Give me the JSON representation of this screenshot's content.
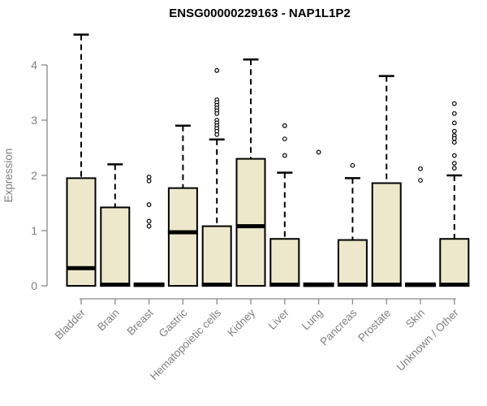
{
  "chart_data": {
    "type": "boxplot",
    "title": "ENSG00000229163 - NAP1L1P2",
    "ylabel": "Expression",
    "xlabel": "",
    "ylim": [
      0,
      4.6
    ],
    "yticks": [
      0,
      1,
      2,
      3,
      4
    ],
    "grid": false,
    "legend": false,
    "categories": [
      "Bladder",
      "Brain",
      "Breast",
      "Gastric",
      "Hematopoietic cells",
      "Kidney",
      "Liver",
      "Lung",
      "Pancreas",
      "Prostate",
      "Skin",
      "Unknown / Other"
    ],
    "series": [
      {
        "category": "Bladder",
        "q1": 0,
        "median": 0.32,
        "q3": 1.95,
        "whisker_low": 0,
        "whisker_high": 4.55,
        "outliers": []
      },
      {
        "category": "Brain",
        "q1": 0,
        "median": 0.02,
        "q3": 1.42,
        "whisker_low": 0,
        "whisker_high": 2.2,
        "outliers": []
      },
      {
        "category": "Breast",
        "q1": 0,
        "median": 0.02,
        "q3": 0,
        "whisker_low": 0,
        "whisker_high": 0,
        "outliers": [
          1.97,
          1.9,
          1.47,
          1.17,
          1.08
        ]
      },
      {
        "category": "Gastric",
        "q1": 0,
        "median": 0.97,
        "q3": 1.77,
        "whisker_low": 0,
        "whisker_high": 2.9,
        "outliers": []
      },
      {
        "category": "Hematopoietic cells",
        "q1": 0,
        "median": 0.02,
        "q3": 1.08,
        "whisker_low": 0,
        "whisker_high": 2.65,
        "outliers": [
          3.9,
          3.37,
          3.32,
          3.27,
          3.22,
          3.17,
          3.12,
          3.0,
          2.95,
          2.9,
          2.85,
          2.8,
          2.74
        ]
      },
      {
        "category": "Kidney",
        "q1": 0,
        "median": 1.08,
        "q3": 2.3,
        "whisker_low": 0,
        "whisker_high": 4.1,
        "outliers": []
      },
      {
        "category": "Liver",
        "q1": 0,
        "median": 0.02,
        "q3": 0.85,
        "whisker_low": 0,
        "whisker_high": 2.05,
        "outliers": [
          2.9,
          2.66,
          2.36
        ]
      },
      {
        "category": "Lung",
        "q1": 0,
        "median": 0.02,
        "q3": 0,
        "whisker_low": 0,
        "whisker_high": 0,
        "outliers": [
          2.42
        ]
      },
      {
        "category": "Pancreas",
        "q1": 0,
        "median": 0.02,
        "q3": 0.83,
        "whisker_low": 0,
        "whisker_high": 1.95,
        "outliers": [
          2.18
        ]
      },
      {
        "category": "Prostate",
        "q1": 0,
        "median": 0.02,
        "q3": 1.86,
        "whisker_low": 0,
        "whisker_high": 3.8,
        "outliers": []
      },
      {
        "category": "Skin",
        "q1": 0,
        "median": 0.02,
        "q3": 0,
        "whisker_low": 0,
        "whisker_high": 0,
        "outliers": [
          2.12,
          1.91
        ]
      },
      {
        "category": "Unknown / Other",
        "q1": 0,
        "median": 0.02,
        "q3": 0.85,
        "whisker_low": 0,
        "whisker_high": 2.0,
        "outliers": [
          3.3,
          3.12,
          2.95,
          2.8,
          2.72,
          2.67,
          2.6,
          2.36,
          2.22,
          2.13
        ]
      }
    ],
    "colors": {
      "box_fill": "#ede8cc",
      "box_stroke": "#000000",
      "median": "#000000",
      "whisker": "#000000",
      "axis": "#898989",
      "tick_text": "#808080",
      "title_text": "#000000",
      "background": "#ffffff"
    }
  }
}
